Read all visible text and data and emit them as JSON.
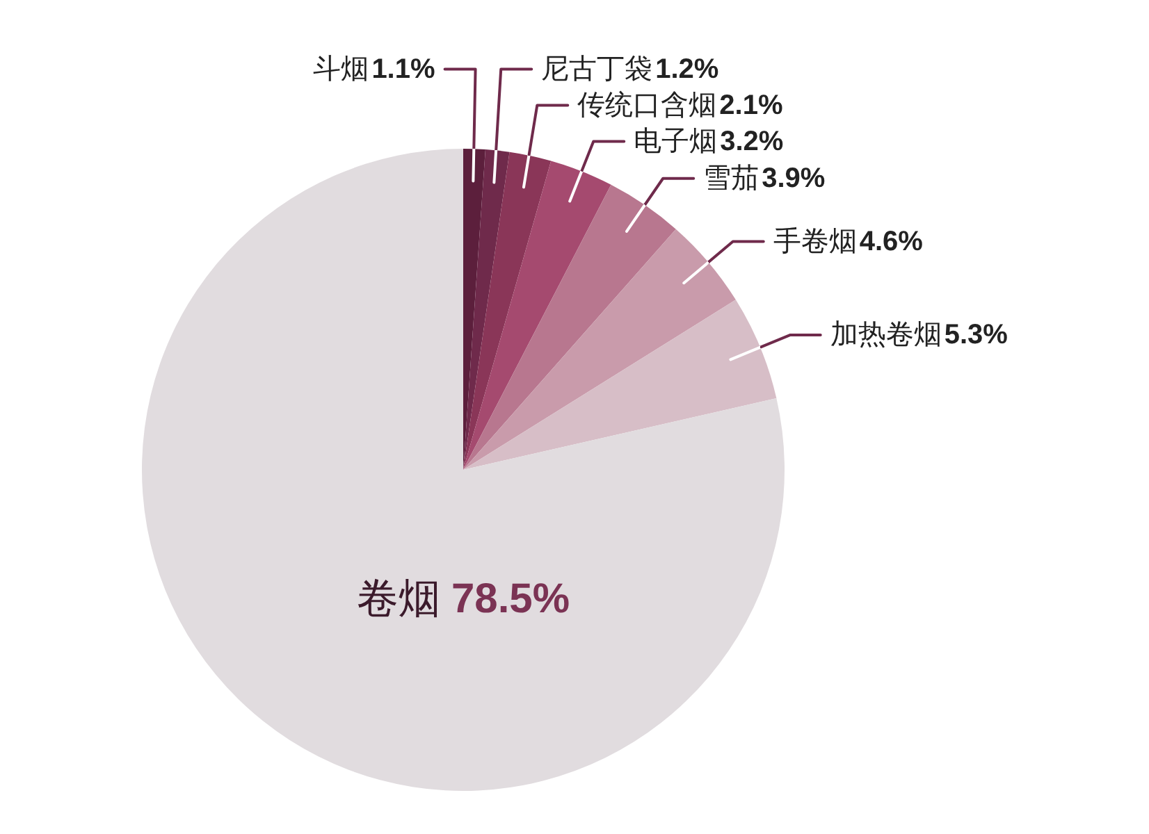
{
  "chart_data": {
    "type": "pie",
    "categories": [
      "斗烟",
      "尼古丁袋",
      "传统口含烟",
      "电子烟",
      "雪茄",
      "手卷烟",
      "加热卷烟",
      "卷烟"
    ],
    "values": [
      1.1,
      1.2,
      2.1,
      3.2,
      3.9,
      4.6,
      5.3,
      78.5
    ],
    "colors": [
      "#5c1f3c",
      "#6f2a4b",
      "#8a3658",
      "#a54a6f",
      "#b8778f",
      "#c99bab",
      "#d7bec7",
      "#e1dcdf"
    ],
    "value_labels": [
      "1.1%",
      "1.2%",
      "2.1%",
      "3.2%",
      "3.9%",
      "4.6%",
      "5.3%",
      "78.5%"
    ]
  }
}
